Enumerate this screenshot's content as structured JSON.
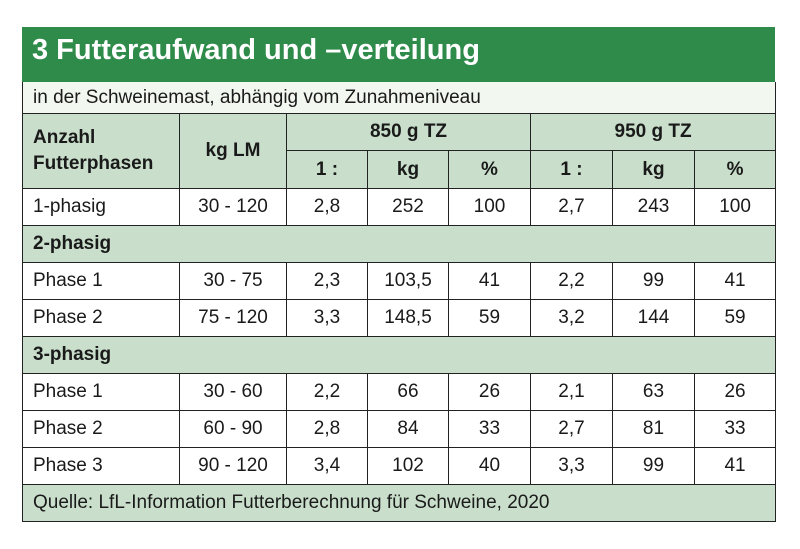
{
  "title": "3 Futteraufwand und –verteilung",
  "subtitle": "in der Schweinemast, abhängig vom Zunahmeniveau",
  "header": {
    "col_anzahl": "Anzahl Futterphasen",
    "col_kg_lm": "kg LM",
    "group_850": "850 g TZ",
    "group_950": "950 g TZ",
    "sub_ratio": "1 :",
    "sub_kg": "kg",
    "sub_pct": "%"
  },
  "rows": {
    "einphasig": [
      "1-phasig",
      "30 - 120",
      "2,8",
      "252",
      "100",
      "2,7",
      "243",
      "100"
    ],
    "zweiphasig_label": "2-phasig",
    "zweiphasig": [
      [
        "Phase 1",
        "30 - 75",
        "2,3",
        "103,5",
        "41",
        "2,2",
        "99",
        "41"
      ],
      [
        "Phase 2",
        "75 - 120",
        "3,3",
        "148,5",
        "59",
        "3,2",
        "144",
        "59"
      ]
    ],
    "dreiphasig_label": "3-phasig",
    "dreiphasig": [
      [
        "Phase 1",
        "30 - 60",
        "2,2",
        "66",
        "26",
        "2,1",
        "63",
        "26"
      ],
      [
        "Phase 2",
        "60 - 90",
        "2,8",
        "84",
        "33",
        "2,7",
        "81",
        "33"
      ],
      [
        "Phase 3",
        "90 - 120",
        "3,4",
        "102",
        "40",
        "3,3",
        "99",
        "41"
      ]
    ]
  },
  "source": "Quelle: LfL-Information Futterberechnung für Schweine, 2020",
  "colors": {
    "title_bg": "#2e8b4a",
    "header_bg": "#c9dfcb",
    "subtitle_bg": "#f2f7f0"
  }
}
